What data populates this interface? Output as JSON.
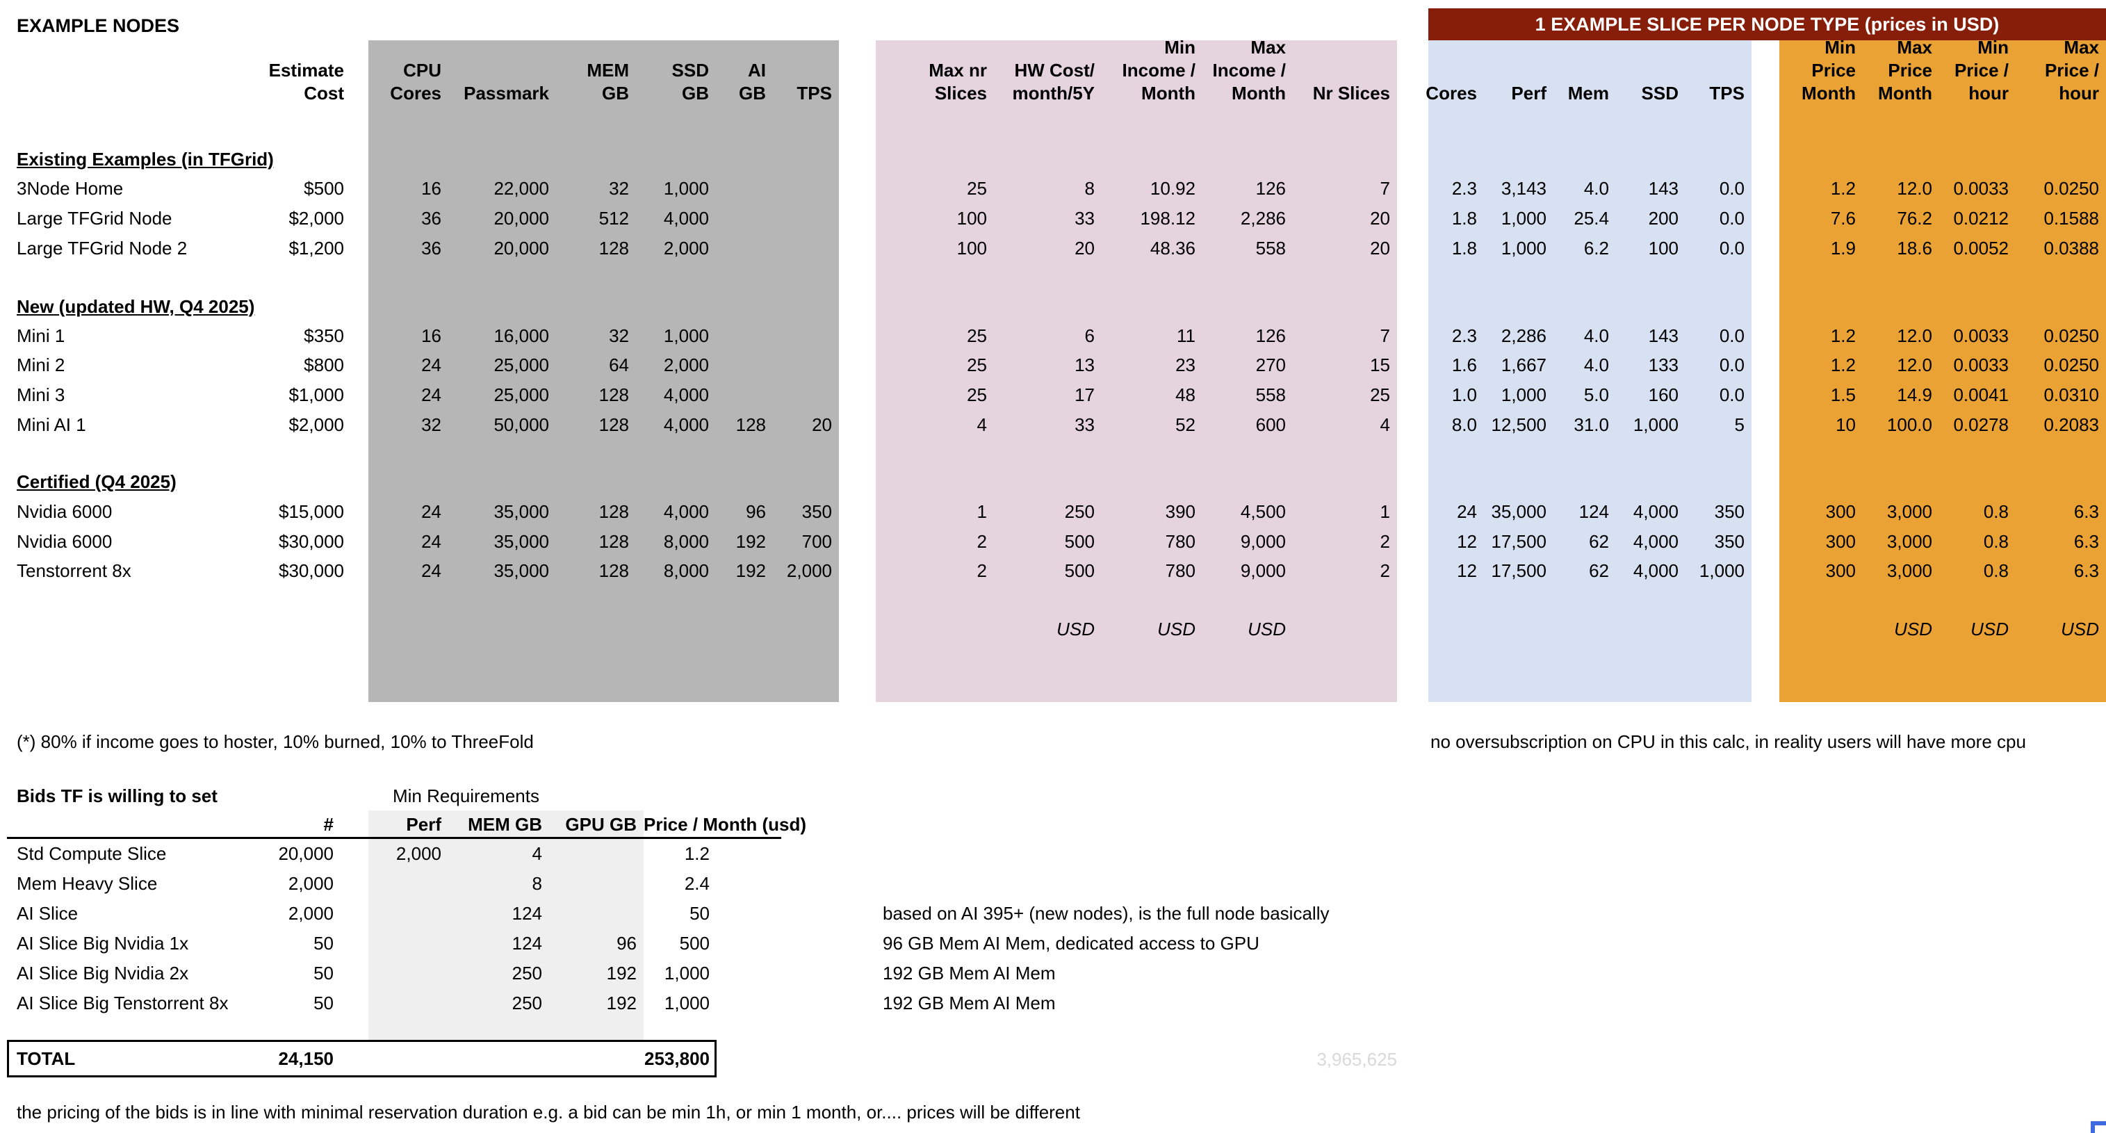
{
  "page": {
    "title": "EXAMPLE NODES",
    "banner": "1 EXAMPLE SLICE PER NODE TYPE (prices in USD)",
    "note_hoster": "(*) 80% if income goes to hoster, 10% burned, 10% to ThreeFold",
    "note_oversub": "no oversubscription on CPU in this calc, in reality users will have more cpu",
    "note_pricing": "the pricing of the bids is in line with minimal reservation duration e.g. a bid can be min 1h, or min 1 month, or.... prices will be different",
    "ghost_total": "3,965,625"
  },
  "colors": {
    "gray": "#b6b6b6",
    "pink": "#e5d3de",
    "blue": "#d7e1f1",
    "orange": "#eba235",
    "banner": "#871e09",
    "banner_text": "#ffffff",
    "bids_shade": "#efefef",
    "ghost": "#d9d9d9",
    "corner": "#3e6ce0"
  },
  "main_table": {
    "headers": {
      "name": "",
      "est": "Estimate\nCost",
      "gray": [
        "CPU\nCores",
        "Passmark",
        "MEM GB",
        "SSD\nGB",
        "AI\nGB",
        "TPS"
      ],
      "pink": [
        "Max nr\nSlices",
        "HW Cost/\nmonth/5Y",
        "Min\nIncome /\nMonth",
        "Max\nIncome /\nMonth",
        "Nr Slices"
      ],
      "blue": [
        "Cores",
        "Perf",
        "Mem",
        "SSD",
        "TPS"
      ],
      "orange": [
        "Min\nPrice\nMonth",
        "Max\nPrice\nMonth",
        "Min\nPrice /\nhour",
        "Max\nPrice /\nhour"
      ]
    },
    "rows": [
      {
        "type": "spacer"
      },
      {
        "type": "section",
        "label": "Existing Examples (in TFGrid)"
      },
      {
        "type": "data",
        "name": "3Node Home",
        "est": "$500",
        "gray": [
          "16",
          "22,000",
          "32",
          "1,000",
          "",
          ""
        ],
        "pink": [
          "25",
          "8",
          "10.92",
          "126",
          "7"
        ],
        "blue": [
          "2.3",
          "3,143",
          "4.0",
          "143",
          "0.0"
        ],
        "orange": [
          "1.2",
          "12.0",
          "0.0033",
          "0.0250"
        ]
      },
      {
        "type": "data",
        "name": "Large TFGrid Node",
        "est": "$2,000",
        "gray": [
          "36",
          "20,000",
          "512",
          "4,000",
          "",
          ""
        ],
        "pink": [
          "100",
          "33",
          "198.12",
          "2,286",
          "20"
        ],
        "blue": [
          "1.8",
          "1,000",
          "25.4",
          "200",
          "0.0"
        ],
        "orange": [
          "7.6",
          "76.2",
          "0.0212",
          "0.1588"
        ]
      },
      {
        "type": "data",
        "name": "Large TFGrid Node 2",
        "est": "$1,200",
        "gray": [
          "36",
          "20,000",
          "128",
          "2,000",
          "",
          ""
        ],
        "pink": [
          "100",
          "20",
          "48.36",
          "558",
          "20"
        ],
        "blue": [
          "1.8",
          "1,000",
          "6.2",
          "100",
          "0.0"
        ],
        "orange": [
          "1.9",
          "18.6",
          "0.0052",
          "0.0388"
        ]
      },
      {
        "type": "spacer"
      },
      {
        "type": "section",
        "label": "New (updated HW, Q4 2025)"
      },
      {
        "type": "data",
        "name": "Mini 1",
        "est": "$350",
        "gray": [
          "16",
          "16,000",
          "32",
          "1,000",
          "",
          ""
        ],
        "pink": [
          "25",
          "6",
          "11",
          "126",
          "7"
        ],
        "blue": [
          "2.3",
          "2,286",
          "4.0",
          "143",
          "0.0"
        ],
        "orange": [
          "1.2",
          "12.0",
          "0.0033",
          "0.0250"
        ]
      },
      {
        "type": "data",
        "name": "Mini 2",
        "est": "$800",
        "gray": [
          "24",
          "25,000",
          "64",
          "2,000",
          "",
          ""
        ],
        "pink": [
          "25",
          "13",
          "23",
          "270",
          "15"
        ],
        "blue": [
          "1.6",
          "1,667",
          "4.0",
          "133",
          "0.0"
        ],
        "orange": [
          "1.2",
          "12.0",
          "0.0033",
          "0.0250"
        ]
      },
      {
        "type": "data",
        "name": "Mini 3",
        "est": "$1,000",
        "gray": [
          "24",
          "25,000",
          "128",
          "4,000",
          "",
          ""
        ],
        "pink": [
          "25",
          "17",
          "48",
          "558",
          "25"
        ],
        "blue": [
          "1.0",
          "1,000",
          "5.0",
          "160",
          "0.0"
        ],
        "orange": [
          "1.5",
          "14.9",
          "0.0041",
          "0.0310"
        ]
      },
      {
        "type": "data",
        "name": "Mini AI 1",
        "est": "$2,000",
        "gray": [
          "32",
          "50,000",
          "128",
          "4,000",
          "128",
          "20"
        ],
        "pink": [
          "4",
          "33",
          "52",
          "600",
          "4"
        ],
        "blue": [
          "8.0",
          "12,500",
          "31.0",
          "1,000",
          "5"
        ],
        "orange": [
          "10",
          "100.0",
          "0.0278",
          "0.2083"
        ]
      },
      {
        "type": "spacer"
      },
      {
        "type": "section",
        "label": "Certified (Q4 2025)"
      },
      {
        "type": "data",
        "name": "Nvidia 6000",
        "est": "$15,000",
        "gray": [
          "24",
          "35,000",
          "128",
          "4,000",
          "96",
          "350"
        ],
        "pink": [
          "1",
          "250",
          "390",
          "4,500",
          "1"
        ],
        "blue": [
          "24",
          "35,000",
          "124",
          "4,000",
          "350"
        ],
        "orange": [
          "300",
          "3,000",
          "0.8",
          "6.3"
        ]
      },
      {
        "type": "data",
        "name": "Nvidia 6000",
        "est": "$30,000",
        "gray": [
          "24",
          "35,000",
          "128",
          "8,000",
          "192",
          "700"
        ],
        "pink": [
          "2",
          "500",
          "780",
          "9,000",
          "2"
        ],
        "blue": [
          "12",
          "17,500",
          "62",
          "4,000",
          "350"
        ],
        "orange": [
          "300",
          "3,000",
          "0.8",
          "6.3"
        ]
      },
      {
        "type": "data",
        "name": "Tenstorrent 8x",
        "est": "$30,000",
        "gray": [
          "24",
          "35,000",
          "128",
          "8,000",
          "192",
          "2,000"
        ],
        "pink": [
          "2",
          "500",
          "780",
          "9,000",
          "2"
        ],
        "blue": [
          "12",
          "17,500",
          "62",
          "4,000",
          "1,000"
        ],
        "orange": [
          "300",
          "3,000",
          "0.8",
          "6.3"
        ]
      },
      {
        "type": "spacer"
      },
      {
        "type": "usd",
        "pink": [
          "",
          "USD",
          "USD",
          "USD",
          ""
        ],
        "orange": [
          "",
          "USD",
          "USD",
          "USD"
        ]
      },
      {
        "type": "spacer"
      }
    ]
  },
  "bids_table": {
    "title": "Bids TF is willing to set",
    "subtitle": "Min Requirements",
    "headers": {
      "count": "#",
      "perf": "Perf",
      "mem": "MEM GB",
      "gpu": "GPU GB",
      "price": "Price / Month (usd)"
    },
    "rows": [
      {
        "name": "Std Compute Slice",
        "count": "20,000",
        "perf": "2,000",
        "mem": "4",
        "gpu": "",
        "price": "1.2",
        "note": ""
      },
      {
        "name": "Mem Heavy Slice",
        "count": "2,000",
        "perf": "",
        "mem": "8",
        "gpu": "",
        "price": "2.4",
        "note": ""
      },
      {
        "name": "AI Slice",
        "count": "2,000",
        "perf": "",
        "mem": "124",
        "gpu": "",
        "price": "50",
        "note": "based on AI 395+ (new nodes), is the full node basically"
      },
      {
        "name": "AI Slice Big Nvidia 1x",
        "count": "50",
        "perf": "",
        "mem": "124",
        "gpu": "96",
        "price": "500",
        "note": "96 GB Mem AI Mem, dedicated access to GPU"
      },
      {
        "name": "AI Slice Big Nvidia 2x",
        "count": "50",
        "perf": "",
        "mem": "250",
        "gpu": "192",
        "price": "1,000",
        "note": "192 GB Mem AI Mem"
      },
      {
        "name": "AI Slice Big Tenstorrent 8x",
        "count": "50",
        "perf": "",
        "mem": "250",
        "gpu": "192",
        "price": "1,000",
        "note": "192 GB Mem AI Mem"
      }
    ],
    "total": {
      "name": "TOTAL",
      "count": "24,150",
      "price": "253,800"
    }
  }
}
